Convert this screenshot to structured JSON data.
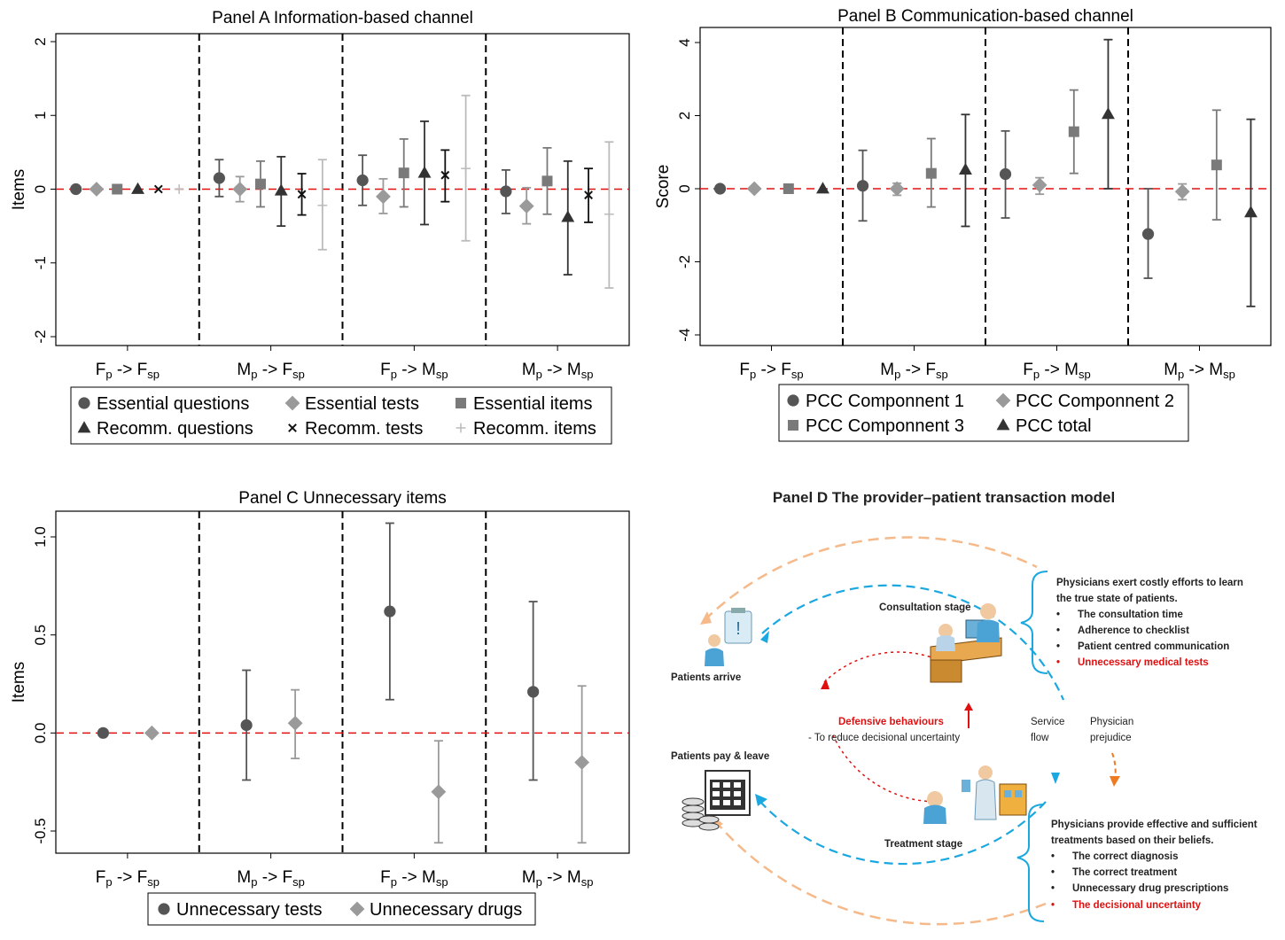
{
  "chart_data": [
    {
      "id": "A",
      "type": "scatter",
      "title": "Panel A Information-based channel",
      "ylabel": "Items",
      "ylim": [
        -2,
        2
      ],
      "yticks": [
        "2",
        "1",
        "0",
        "-1",
        "-2"
      ],
      "grid": false,
      "groups": [
        {
          "base": "F",
          "bsub": "p",
          "arrow": "->",
          "target": "F",
          "tsub": "sp"
        },
        {
          "base": "M",
          "bsub": "p",
          "arrow": "->",
          "target": "F",
          "tsub": "sp"
        },
        {
          "base": "F",
          "bsub": "p",
          "arrow": "->",
          "target": "M",
          "tsub": "sp"
        },
        {
          "base": "M",
          "bsub": "p",
          "arrow": "->",
          "target": "M",
          "tsub": "sp"
        }
      ],
      "series": [
        {
          "name": "Essential questions",
          "marker": "circle",
          "color": "#555555",
          "values": [
            0,
            0.15,
            0.12,
            -0.03
          ],
          "lo": [
            0,
            -0.1,
            -0.22,
            -0.33
          ],
          "hi": [
            0,
            0.4,
            0.46,
            0.26
          ]
        },
        {
          "name": "Essential tests",
          "marker": "diamond",
          "color": "#9a9a9a",
          "values": [
            0,
            0.0,
            -0.1,
            -0.23
          ],
          "lo": [
            0,
            -0.17,
            -0.33,
            -0.47
          ],
          "hi": [
            0,
            0.17,
            0.14,
            0.02
          ]
        },
        {
          "name": "Essential items",
          "marker": "square",
          "color": "#7a7a7a",
          "values": [
            0,
            0.07,
            0.22,
            0.11
          ],
          "lo": [
            0,
            -0.24,
            -0.24,
            -0.34
          ],
          "hi": [
            0,
            0.38,
            0.68,
            0.56
          ]
        },
        {
          "name": "Recomm. questions",
          "marker": "triangle",
          "color": "#333333",
          "values": [
            0,
            -0.02,
            0.22,
            -0.38
          ],
          "lo": [
            0,
            -0.5,
            -0.48,
            -1.16
          ],
          "hi": [
            0,
            0.44,
            0.92,
            0.38
          ]
        },
        {
          "name": "Recomm. tests",
          "marker": "x",
          "color": "#111111",
          "values": [
            0,
            -0.07,
            0.19,
            -0.08
          ],
          "lo": [
            0,
            -0.35,
            -0.17,
            -0.45
          ],
          "hi": [
            0,
            0.21,
            0.53,
            0.28
          ]
        },
        {
          "name": "Recomm. items",
          "marker": "plus",
          "color": "#bbbbbb",
          "values": [
            0,
            -0.22,
            0.28,
            -0.34
          ],
          "lo": [
            0,
            -0.82,
            -0.7,
            -1.34
          ],
          "hi": [
            0,
            0.4,
            1.27,
            0.64
          ]
        }
      ]
    },
    {
      "id": "B",
      "type": "scatter",
      "title": "Panel B Communication-based channel",
      "ylabel": "Score",
      "ylim": [
        -4,
        4
      ],
      "yticks": [
        "4",
        "2",
        "0",
        "-2",
        "-4"
      ],
      "grid": false,
      "groups": [
        {
          "base": "F",
          "bsub": "p",
          "arrow": "->",
          "target": "F",
          "tsub": "sp"
        },
        {
          "base": "M",
          "bsub": "p",
          "arrow": "->",
          "target": "F",
          "tsub": "sp"
        },
        {
          "base": "F",
          "bsub": "p",
          "arrow": "->",
          "target": "M",
          "tsub": "sp"
        },
        {
          "base": "M",
          "bsub": "p",
          "arrow": "->",
          "target": "M",
          "tsub": "sp"
        }
      ],
      "series": [
        {
          "name": "PCC Componnent 1",
          "marker": "circle",
          "color": "#555555",
          "values": [
            0,
            0.08,
            0.4,
            -1.24
          ],
          "lo": [
            0,
            -0.88,
            -0.8,
            -2.45
          ],
          "hi": [
            0,
            1.05,
            1.58,
            0.0
          ]
        },
        {
          "name": "PCC Componnent 2",
          "marker": "diamond",
          "color": "#9a9a9a",
          "values": [
            0,
            0.0,
            0.1,
            -0.08
          ],
          "lo": [
            0,
            -0.18,
            -0.15,
            -0.3
          ],
          "hi": [
            0,
            0.15,
            0.3,
            0.13
          ]
        },
        {
          "name": "PCC Componnent 3",
          "marker": "square",
          "color": "#7a7a7a",
          "values": [
            0,
            0.42,
            1.56,
            0.65
          ],
          "lo": [
            0,
            -0.5,
            0.42,
            -0.85
          ],
          "hi": [
            0,
            1.37,
            2.7,
            2.15
          ]
        },
        {
          "name": "PCC total",
          "marker": "triangle",
          "color": "#333333",
          "values": [
            0,
            0.52,
            2.04,
            -0.65
          ],
          "lo": [
            0,
            -1.03,
            0.0,
            -3.22
          ],
          "hi": [
            0,
            2.03,
            4.08,
            1.9
          ]
        }
      ]
    },
    {
      "id": "C",
      "type": "scatter",
      "title": "Panel C Unnecessary items",
      "ylabel": "Items",
      "ylim": [
        -0.6,
        1.1
      ],
      "yticks": [
        "1.0",
        "0.5",
        "0.0",
        "-0.5"
      ],
      "ytick_values": [
        1.0,
        0.5,
        0.0,
        -0.5
      ],
      "grid": false,
      "groups": [
        {
          "base": "F",
          "bsub": "p",
          "arrow": "->",
          "target": "F",
          "tsub": "sp"
        },
        {
          "base": "M",
          "bsub": "p",
          "arrow": "->",
          "target": "F",
          "tsub": "sp"
        },
        {
          "base": "F",
          "bsub": "p",
          "arrow": "->",
          "target": "M",
          "tsub": "sp"
        },
        {
          "base": "M",
          "bsub": "p",
          "arrow": "->",
          "target": "M",
          "tsub": "sp"
        }
      ],
      "series": [
        {
          "name": "Unnecessary tests",
          "marker": "circle",
          "color": "#555555",
          "values": [
            0,
            0.04,
            0.62,
            0.21
          ],
          "lo": [
            0,
            -0.24,
            0.17,
            -0.24
          ],
          "hi": [
            0,
            0.32,
            1.07,
            0.67
          ]
        },
        {
          "name": "Unnecessary drugs",
          "marker": "diamond",
          "color": "#9a9a9a",
          "values": [
            0,
            0.05,
            -0.3,
            -0.15
          ],
          "lo": [
            0,
            -0.13,
            -0.56,
            -0.56
          ],
          "hi": [
            0,
            0.22,
            -0.04,
            0.24
          ]
        }
      ]
    }
  ],
  "panel_d": {
    "title": "Panel D The provider–patient transaction model",
    "patients_arrive": "Patients arrive",
    "patients_leave": "Patients pay & leave",
    "consultation_stage": "Consultation stage",
    "treatment_stage": "Treatment stage",
    "defensive_title": "Defensive behaviours",
    "defensive_sub": "- To reduce decisional uncertainty",
    "service_flow_1": "Service",
    "service_flow_2": "flow",
    "prejudice_1": "Physician",
    "prejudice_2": "prejudice",
    "consult_box_1": "Physicians exert costly efforts to learn",
    "consult_box_2": "the true state of patients.",
    "consult_items": [
      "The consultation time",
      "Adherence to checklist",
      "Patient centred communication"
    ],
    "consult_red": "Unnecessary medical tests",
    "treat_box_1": "Physicians provide effective and sufficient",
    "treat_box_2": "treatments based on their beliefs.",
    "treat_items": [
      "The correct diagnosis",
      "The correct treatment",
      "Unnecessary drug prescriptions"
    ],
    "treat_red": "The decisional uncertainty",
    "colors": {
      "blue": "#1ba8e0",
      "orange": "#f5b98a",
      "red": "#e01010",
      "dark_orange": "#f07a20"
    }
  }
}
